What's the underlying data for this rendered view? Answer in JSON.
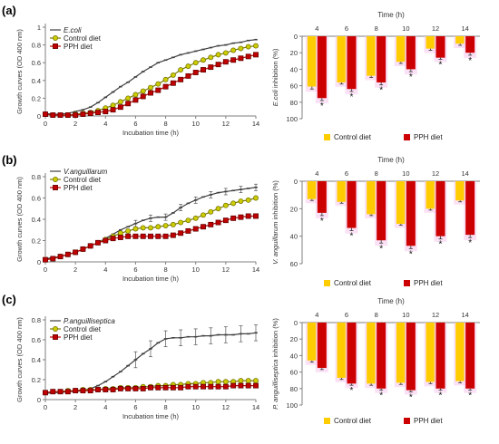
{
  "chart_data": [
    {
      "type": "line",
      "panel_label": "(a)",
      "xlabel": "Incubation time (h)",
      "ylabel": "Growth curves (OD 400 nm)",
      "xlim": [
        0,
        14
      ],
      "ylim": [
        0,
        1.0
      ],
      "xticks": [
        0,
        2,
        4,
        6,
        8,
        10,
        12,
        14
      ],
      "yticks": [
        0,
        0.2,
        0.4,
        0.6,
        0.8,
        1.0
      ],
      "ytick_labels": [
        "0",
        "0.2",
        "0.4",
        "0.6",
        "0.8",
        "1"
      ],
      "grid": false,
      "legend": "top-left",
      "x": [
        0,
        0.5,
        1,
        1.5,
        2,
        2.5,
        3,
        3.5,
        4,
        4.5,
        5,
        5.5,
        6,
        6.5,
        7,
        7.5,
        8,
        8.5,
        9,
        9.5,
        10,
        10.5,
        11,
        11.5,
        12,
        12.5,
        13,
        13.5,
        14
      ],
      "series": [
        {
          "name": "E.coli",
          "name_style": "italic",
          "color": "#404040",
          "marker": "dash",
          "values": [
            0.03,
            0.02,
            0.02,
            0.03,
            0.05,
            0.07,
            0.1,
            0.15,
            0.21,
            0.27,
            0.33,
            0.38,
            0.44,
            0.5,
            0.55,
            0.6,
            0.63,
            0.66,
            0.69,
            0.71,
            0.73,
            0.75,
            0.77,
            0.79,
            0.8,
            0.82,
            0.83,
            0.85,
            0.86
          ]
        },
        {
          "name": "Control diet",
          "color": "#cccc00",
          "marker": "circle",
          "values": [
            0.02,
            0.01,
            0.01,
            0.01,
            0.02,
            0.03,
            0.04,
            0.06,
            0.09,
            0.12,
            0.16,
            0.2,
            0.24,
            0.28,
            0.32,
            0.36,
            0.41,
            0.46,
            0.52,
            0.56,
            0.6,
            0.63,
            0.66,
            0.69,
            0.71,
            0.74,
            0.76,
            0.78,
            0.79
          ]
        },
        {
          "name": "PPH diet",
          "color": "#c00000",
          "marker": "square",
          "values": [
            0.02,
            0.01,
            0.01,
            0.01,
            0.01,
            0.02,
            0.03,
            0.04,
            0.05,
            0.07,
            0.1,
            0.14,
            0.18,
            0.22,
            0.26,
            0.29,
            0.33,
            0.37,
            0.41,
            0.45,
            0.49,
            0.52,
            0.55,
            0.58,
            0.61,
            0.63,
            0.65,
            0.67,
            0.69
          ]
        }
      ]
    },
    {
      "type": "bar",
      "title": "Time (h)",
      "ylabel": "E.coli inhibition (%)",
      "ylabel_prefix": "",
      "ylabel_italic": "E.coli",
      "ylabel_suffix": " inhibition (%)",
      "categories": [
        "4",
        "6",
        "8",
        "10",
        "12",
        "14"
      ],
      "ylim": [
        0,
        100
      ],
      "yticks": [
        0,
        20,
        40,
        60,
        80,
        100
      ],
      "axis_inverted": true,
      "grid": false,
      "legend": "bottom",
      "series": [
        {
          "name": "Control diet",
          "color": "#ffcc00",
          "values": [
            61,
            56,
            48,
            31,
            15,
            9
          ],
          "errors": [
            3,
            2,
            2,
            2,
            2,
            2
          ]
        },
        {
          "name": "PPH diet",
          "color": "#cc0000",
          "values": [
            75,
            64,
            56,
            40,
            26,
            20
          ],
          "errors": [
            3,
            3,
            3,
            3,
            2,
            3
          ]
        }
      ],
      "significance": [
        "*",
        "*",
        "*",
        "*",
        "*",
        "*"
      ]
    },
    {
      "type": "line",
      "panel_label": "(b)",
      "xlabel": "Incubation time (h)",
      "ylabel": "Growth curves (OD 400 nm)",
      "xlim": [
        0,
        14
      ],
      "ylim": [
        0,
        0.8
      ],
      "xticks": [
        0,
        2,
        4,
        6,
        8,
        10,
        12,
        14
      ],
      "yticks": [
        0,
        0.2,
        0.4,
        0.6,
        0.8
      ],
      "ytick_labels": [
        "0",
        "0.2",
        "0.4",
        "0.6",
        "0.8"
      ],
      "grid": false,
      "legend": "top-left",
      "x": [
        0,
        0.5,
        1,
        1.5,
        2,
        2.5,
        3,
        3.5,
        4,
        4.5,
        5,
        5.5,
        6,
        6.5,
        7,
        7.5,
        8,
        8.5,
        9,
        9.5,
        10,
        10.5,
        11,
        11.5,
        12,
        12.5,
        13,
        13.5,
        14
      ],
      "series": [
        {
          "name": "V.anguillarum",
          "name_style": "italic",
          "color": "#404040",
          "marker": "dash",
          "error_bar": 0.03,
          "values": [
            0.03,
            0.04,
            0.05,
            0.07,
            0.09,
            0.12,
            0.15,
            0.18,
            0.22,
            0.26,
            0.3,
            0.33,
            0.36,
            0.39,
            0.41,
            0.42,
            0.42,
            0.46,
            0.51,
            0.55,
            0.58,
            0.61,
            0.63,
            0.65,
            0.66,
            0.67,
            0.68,
            0.69,
            0.7
          ]
        },
        {
          "name": "Control diet",
          "color": "#cccc00",
          "marker": "circle",
          "values": [
            0.02,
            0.03,
            0.05,
            0.07,
            0.09,
            0.12,
            0.15,
            0.18,
            0.21,
            0.24,
            0.27,
            0.29,
            0.31,
            0.32,
            0.32,
            0.33,
            0.34,
            0.35,
            0.37,
            0.39,
            0.41,
            0.44,
            0.47,
            0.5,
            0.53,
            0.55,
            0.57,
            0.58,
            0.6
          ]
        },
        {
          "name": "PPH diet",
          "color": "#c00000",
          "marker": "square",
          "values": [
            0.02,
            0.03,
            0.05,
            0.07,
            0.09,
            0.12,
            0.15,
            0.18,
            0.2,
            0.22,
            0.23,
            0.24,
            0.24,
            0.24,
            0.24,
            0.24,
            0.24,
            0.25,
            0.27,
            0.29,
            0.31,
            0.33,
            0.35,
            0.37,
            0.39,
            0.41,
            0.42,
            0.43,
            0.43
          ]
        }
      ]
    },
    {
      "type": "bar",
      "title": "Time (h)",
      "ylabel": "V. anguillarum inhibition (%)",
      "ylabel_prefix": "",
      "ylabel_italic": "V. anguillarum",
      "ylabel_suffix": " inhibition (%)",
      "categories": [
        "4",
        "6",
        "8",
        "10",
        "12",
        "14"
      ],
      "ylim": [
        0,
        60
      ],
      "yticks": [
        0,
        20,
        40,
        60
      ],
      "axis_inverted": true,
      "grid": false,
      "legend": "bottom",
      "series": [
        {
          "name": "Control diet",
          "color": "#ffcc00",
          "values": [
            13,
            15,
            24,
            31,
            20,
            14
          ],
          "errors": [
            1,
            1,
            1,
            1,
            1,
            1
          ]
        },
        {
          "name": "PPH diet",
          "color": "#cc0000",
          "values": [
            23,
            34,
            43,
            47,
            40,
            39
          ],
          "errors": [
            2,
            2,
            2,
            2,
            2,
            2
          ]
        }
      ],
      "significance": [
        "*",
        "*",
        "*",
        "*",
        "*",
        "*"
      ]
    },
    {
      "type": "line",
      "panel_label": "(c)",
      "xlabel": "Incubation time (h)",
      "ylabel": "Growth curves (OD 400 nm)",
      "xlim": [
        0,
        14
      ],
      "ylim": [
        0,
        0.8
      ],
      "xticks": [
        0,
        2,
        4,
        6,
        8,
        10,
        12,
        14
      ],
      "yticks": [
        0,
        0.2,
        0.4,
        0.6,
        0.8
      ],
      "ytick_labels": [
        "0",
        "0.2",
        "0.4",
        "0.6",
        "0.8"
      ],
      "grid": false,
      "legend": "top-left",
      "x": [
        0,
        0.5,
        1,
        1.5,
        2,
        2.5,
        3,
        3.5,
        4,
        4.5,
        5,
        5.5,
        6,
        6.5,
        7,
        7.5,
        8,
        8.5,
        9,
        9.5,
        10,
        10.5,
        11,
        11.5,
        12,
        12.5,
        13,
        13.5,
        14
      ],
      "series": [
        {
          "name": "P.anguilliseptica",
          "name_style": "italic",
          "color": "#404040",
          "marker": "dash",
          "error_bar": 0.08,
          "values": [
            0.06,
            0.07,
            0.07,
            0.08,
            0.08,
            0.09,
            0.11,
            0.14,
            0.18,
            0.23,
            0.28,
            0.34,
            0.4,
            0.46,
            0.51,
            0.57,
            0.61,
            0.62,
            0.62,
            0.63,
            0.63,
            0.64,
            0.64,
            0.65,
            0.65,
            0.65,
            0.66,
            0.66,
            0.67
          ]
        },
        {
          "name": "Control diet",
          "color": "#cccc00",
          "marker": "circle",
          "values": [
            0.07,
            0.08,
            0.08,
            0.09,
            0.09,
            0.1,
            0.1,
            0.1,
            0.11,
            0.11,
            0.12,
            0.12,
            0.12,
            0.13,
            0.13,
            0.14,
            0.14,
            0.15,
            0.15,
            0.16,
            0.16,
            0.17,
            0.17,
            0.18,
            0.18,
            0.18,
            0.19,
            0.19,
            0.19
          ]
        },
        {
          "name": "PPH diet",
          "color": "#c00000",
          "marker": "square",
          "values": [
            0.07,
            0.08,
            0.08,
            0.08,
            0.09,
            0.09,
            0.09,
            0.1,
            0.1,
            0.1,
            0.11,
            0.11,
            0.11,
            0.11,
            0.12,
            0.12,
            0.12,
            0.12,
            0.12,
            0.13,
            0.13,
            0.13,
            0.13,
            0.13,
            0.13,
            0.14,
            0.14,
            0.14,
            0.14
          ]
        }
      ]
    },
    {
      "type": "bar",
      "title": "Time (h)",
      "ylabel": "P. anguilliseptica inhibition (%)",
      "ylabel_prefix": "",
      "ylabel_italic": "P. anguilliseptica",
      "ylabel_suffix": " inhibition (%)",
      "categories": [
        "4",
        "6",
        "8",
        "10",
        "12",
        "14"
      ],
      "ylim": [
        0,
        100
      ],
      "yticks": [
        0,
        20,
        40,
        60,
        80,
        100
      ],
      "axis_inverted": true,
      "grid": false,
      "legend": "bottom",
      "series": [
        {
          "name": "Control diet",
          "color": "#ffcc00",
          "values": [
            46,
            67,
            74,
            73,
            72,
            71
          ],
          "errors": [
            2,
            2,
            2,
            2,
            2,
            2
          ]
        },
        {
          "name": "PPH diet",
          "color": "#cc0000",
          "values": [
            55,
            74,
            80,
            82,
            80,
            80
          ],
          "errors": [
            2,
            2,
            2,
            2,
            2,
            2
          ]
        }
      ],
      "significance": [
        "",
        "*",
        "*",
        "*",
        "*",
        "*"
      ]
    }
  ]
}
